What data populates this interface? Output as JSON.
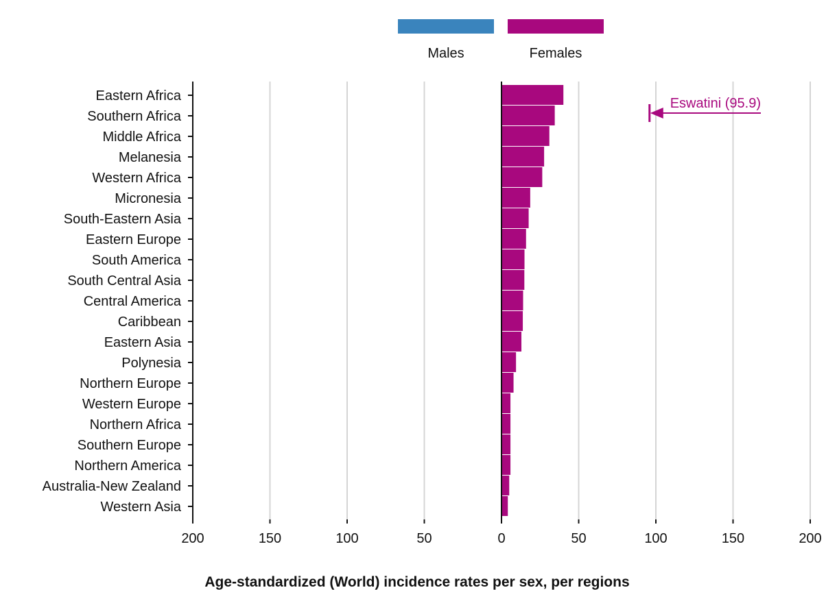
{
  "chart_data": {
    "type": "bar",
    "orientation": "horizontal-diverging",
    "title": "Age-standardized (World) incidence rates per sex, per regions",
    "categories": [
      "Eastern Africa",
      "Southern Africa",
      "Middle Africa",
      "Melanesia",
      "Western Africa",
      "Micronesia",
      "South-Eastern Asia",
      "Eastern Europe",
      "South America",
      "South Central Asia",
      "Central America",
      "Caribbean",
      "Eastern Asia",
      "Polynesia",
      "Northern Europe",
      "Western Europe",
      "Northern Africa",
      "Southern Europe",
      "Northern America",
      "Australia-New Zealand",
      "Western Asia"
    ],
    "series": [
      {
        "name": "Males",
        "color": "#3a84bd",
        "values": [
          0,
          0,
          0,
          0,
          0,
          0,
          0,
          0,
          0,
          0,
          0,
          0,
          0,
          0,
          0,
          0,
          0,
          0,
          0,
          0,
          0
        ]
      },
      {
        "name": "Females",
        "color": "#a8087e",
        "values": [
          40.1,
          34.5,
          31.0,
          27.6,
          26.4,
          18.6,
          17.6,
          15.9,
          14.9,
          14.8,
          14.0,
          13.8,
          12.9,
          9.4,
          7.8,
          5.8,
          5.8,
          5.8,
          5.8,
          5.0,
          4.1
        ]
      }
    ],
    "xlim": [
      -200,
      200
    ],
    "xticks": [
      {
        "value": -200,
        "label": "200"
      },
      {
        "value": -150,
        "label": "150"
      },
      {
        "value": -100,
        "label": "100"
      },
      {
        "value": -50,
        "label": "50"
      },
      {
        "value": 0,
        "label": "0"
      },
      {
        "value": 50,
        "label": "50"
      },
      {
        "value": 100,
        "label": "100"
      },
      {
        "value": 150,
        "label": "150"
      },
      {
        "value": 200,
        "label": "200"
      }
    ],
    "grid": "vertical",
    "legend": {
      "position": "top-center",
      "items": [
        {
          "label": "Males",
          "color": "#3a84bd"
        },
        {
          "label": "Females",
          "color": "#a8087e"
        }
      ]
    },
    "annotation": {
      "text": "Eswatini (95.9)",
      "value": 95.9,
      "category": "Southern Africa",
      "color": "#a8087e",
      "arrow": "points-left"
    }
  }
}
